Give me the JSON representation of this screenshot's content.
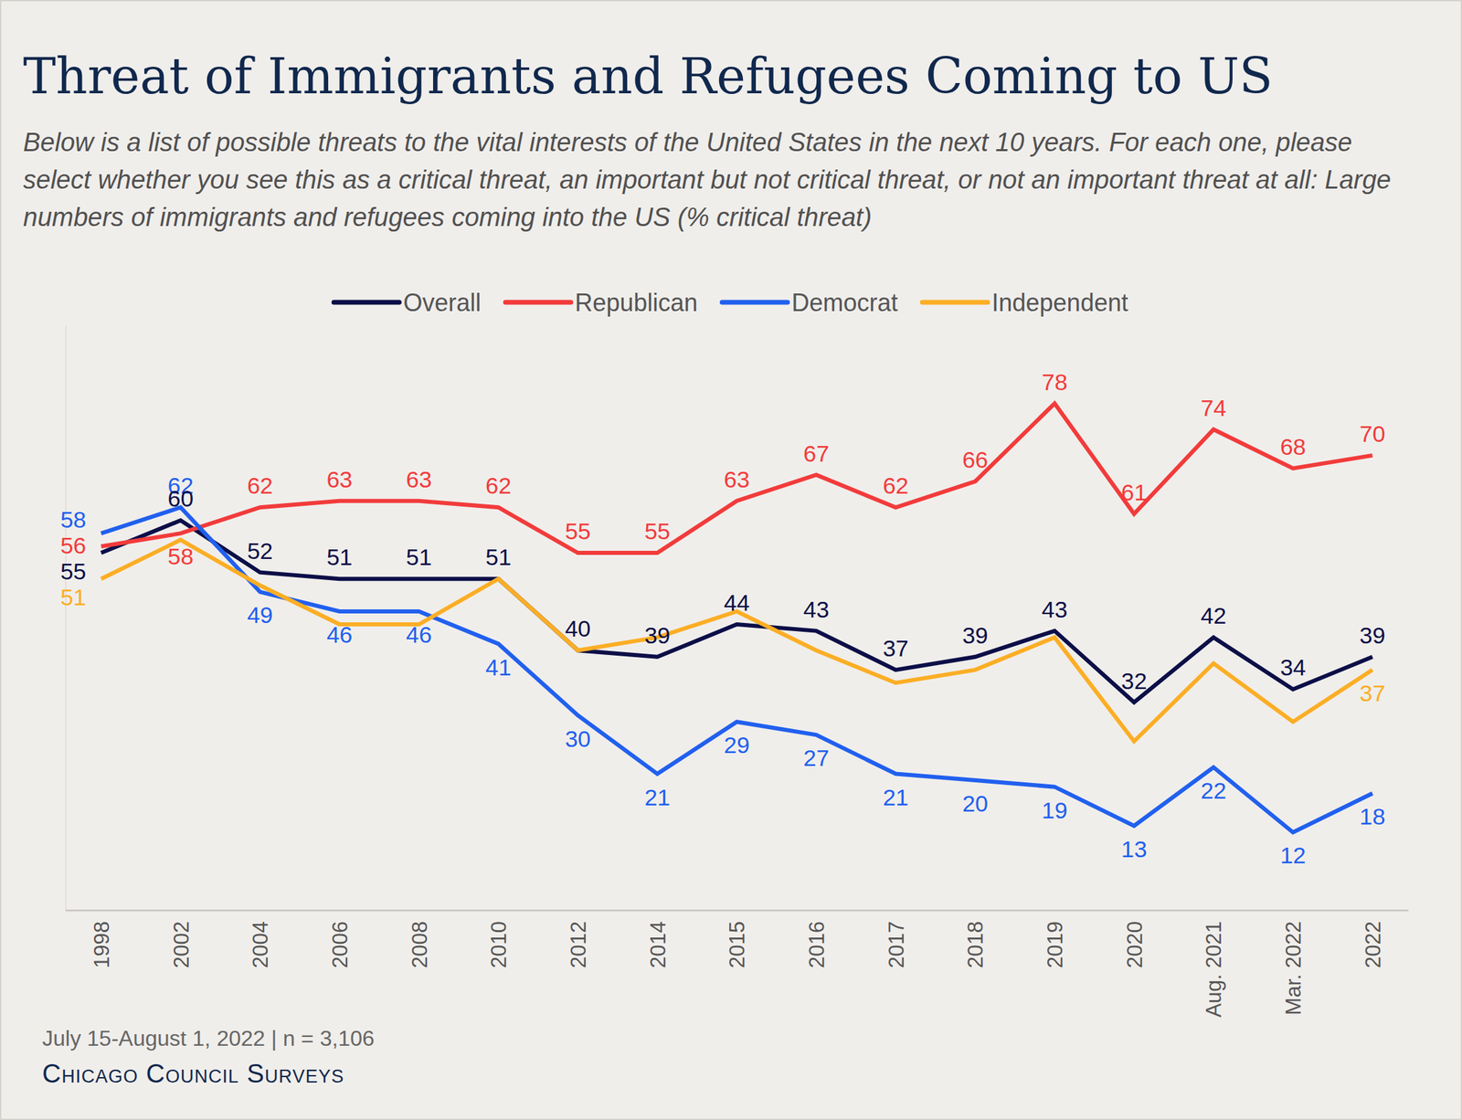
{
  "chart_data": {
    "type": "line",
    "title": "Threat of Immigrants and Refugees Coming to US",
    "subtitle": "Below is a list of possible threats to the vital interests of the United States in the next 10 years. For each one, please select whether you see this as a critical threat, an important but not critical threat, or not an important threat at all: Large numbers of immigrants and refugees coming into the US (% critical threat)",
    "categories": [
      "1998",
      "2002",
      "2004",
      "2006",
      "2008",
      "2010",
      "2012",
      "2014",
      "2015",
      "2016",
      "2017",
      "2018",
      "2019",
      "2020",
      "Aug. 2021",
      "Mar. 2022",
      "2022"
    ],
    "series": [
      {
        "name": "Overall",
        "color": "#0c0f47",
        "values": [
          55,
          60,
          52,
          51,
          51,
          51,
          40,
          39,
          44,
          43,
          37,
          39,
          43,
          32,
          42,
          34,
          39
        ]
      },
      {
        "name": "Republican",
        "color": "#f23b3b",
        "values": [
          56,
          58,
          62,
          63,
          63,
          62,
          55,
          55,
          63,
          67,
          62,
          66,
          78,
          61,
          74,
          68,
          70
        ]
      },
      {
        "name": "Democrat",
        "color": "#2160ee",
        "values": [
          58,
          62,
          49,
          46,
          46,
          41,
          30,
          21,
          29,
          27,
          21,
          20,
          19,
          13,
          22,
          12,
          18
        ]
      },
      {
        "name": "Independent",
        "color": "#fbae25",
        "values": [
          51,
          57,
          50,
          44,
          44,
          51,
          40,
          42,
          46,
          40,
          35,
          37,
          42,
          26,
          38,
          29,
          37
        ],
        "value_labels": [
          "51",
          null,
          null,
          null,
          null,
          null,
          null,
          null,
          null,
          null,
          null,
          null,
          null,
          null,
          null,
          null,
          "37"
        ]
      }
    ],
    "ylim": [
      0,
      90
    ],
    "yticks": [
      0
    ],
    "grid": true,
    "data_labels": true,
    "tick_labels": "x",
    "legend": "top",
    "note": "July 15-August 1, 2022 | n = 3,106",
    "source": "Chicago Council Surveys"
  }
}
